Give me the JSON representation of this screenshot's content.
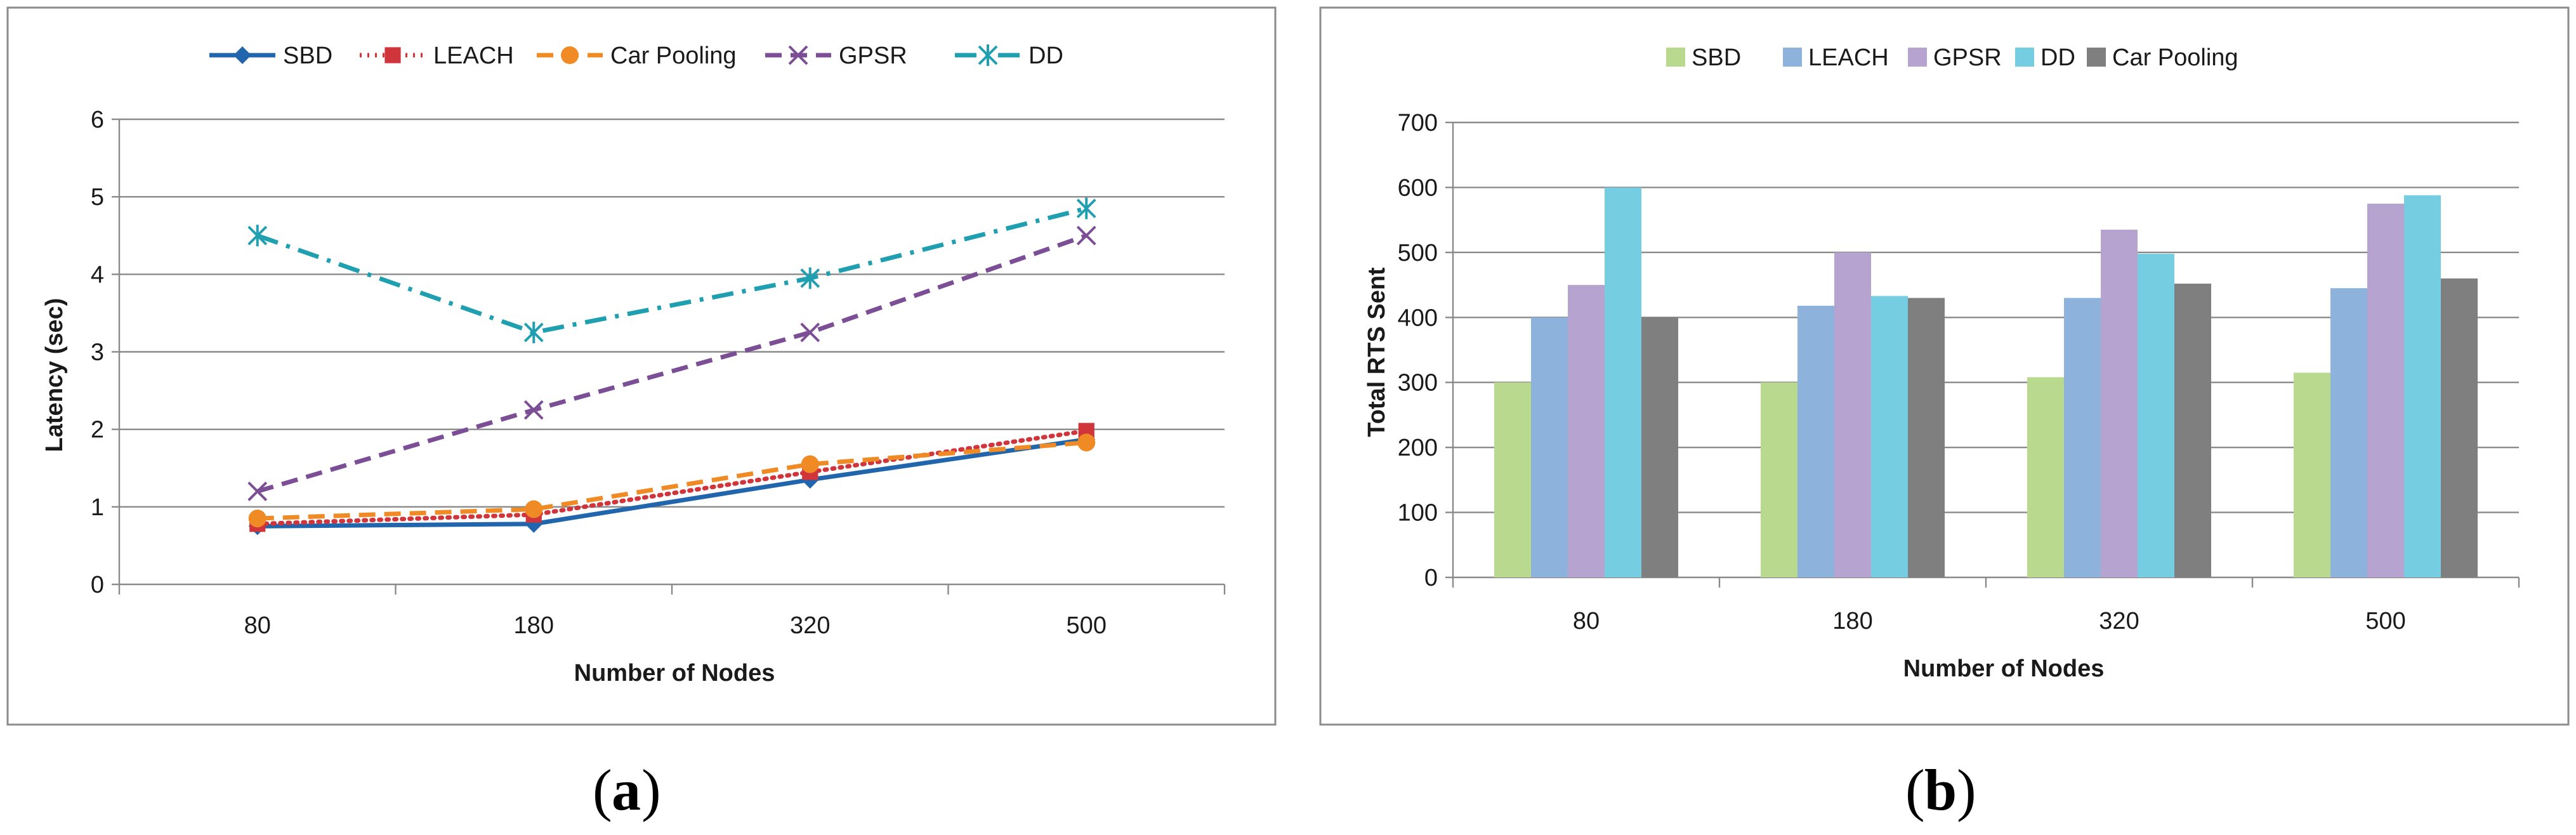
{
  "chart_data": [
    {
      "id": "a",
      "type": "line",
      "panel_label": "a",
      "title": "",
      "xlabel": "Number of Nodes",
      "ylabel": "Latency (sec)",
      "categories": [
        "80",
        "180",
        "320",
        "500"
      ],
      "ylim": [
        0,
        6
      ],
      "yticks": [
        "0",
        "1",
        "2",
        "3",
        "4",
        "5",
        "6"
      ],
      "grid": true,
      "legend_position": "top",
      "series": [
        {
          "name": "SBD",
          "values": [
            0.75,
            0.78,
            1.35,
            1.87
          ],
          "color": "#2166ac",
          "marker": "diamond",
          "dash": "solid"
        },
        {
          "name": "LEACH",
          "values": [
            0.78,
            0.9,
            1.45,
            1.98
          ],
          "color": "#d0353b",
          "marker": "square",
          "dash": "dotted"
        },
        {
          "name": "Car Pooling",
          "values": [
            0.85,
            0.97,
            1.55,
            1.83
          ],
          "color": "#f08a24",
          "marker": "circle",
          "dash": "dashed"
        },
        {
          "name": "GPSR",
          "values": [
            1.2,
            2.25,
            3.25,
            4.5
          ],
          "color": "#7b4e96",
          "marker": "x",
          "dash": "dashed"
        },
        {
          "name": "DD",
          "values": [
            4.5,
            3.25,
            3.95,
            4.85
          ],
          "color": "#1f9fb0",
          "marker": "asterisk",
          "dash": "dashdot"
        }
      ]
    },
    {
      "id": "b",
      "type": "bar",
      "panel_label": "b",
      "title": "",
      "xlabel": "Number of Nodes",
      "ylabel": "Total RTS Sent",
      "categories": [
        "80",
        "180",
        "320",
        "500"
      ],
      "ylim": [
        0,
        700
      ],
      "yticks": [
        "0",
        "100",
        "200",
        "300",
        "400",
        "500",
        "600",
        "700"
      ],
      "grid": true,
      "legend_position": "top",
      "series": [
        {
          "name": "SBD",
          "values": [
            300,
            300,
            308,
            315
          ],
          "color": "#b9d98f"
        },
        {
          "name": "LEACH",
          "values": [
            400,
            418,
            430,
            445
          ],
          "color": "#8db3dc"
        },
        {
          "name": "GPSR",
          "values": [
            450,
            500,
            535,
            575
          ],
          "color": "#b7a3cf"
        },
        {
          "name": "DD",
          "values": [
            600,
            433,
            498,
            588
          ],
          "color": "#74cde0"
        },
        {
          "name": "Car Pooling",
          "values": [
            400,
            430,
            452,
            460
          ],
          "color": "#7f7f7f"
        }
      ]
    }
  ]
}
